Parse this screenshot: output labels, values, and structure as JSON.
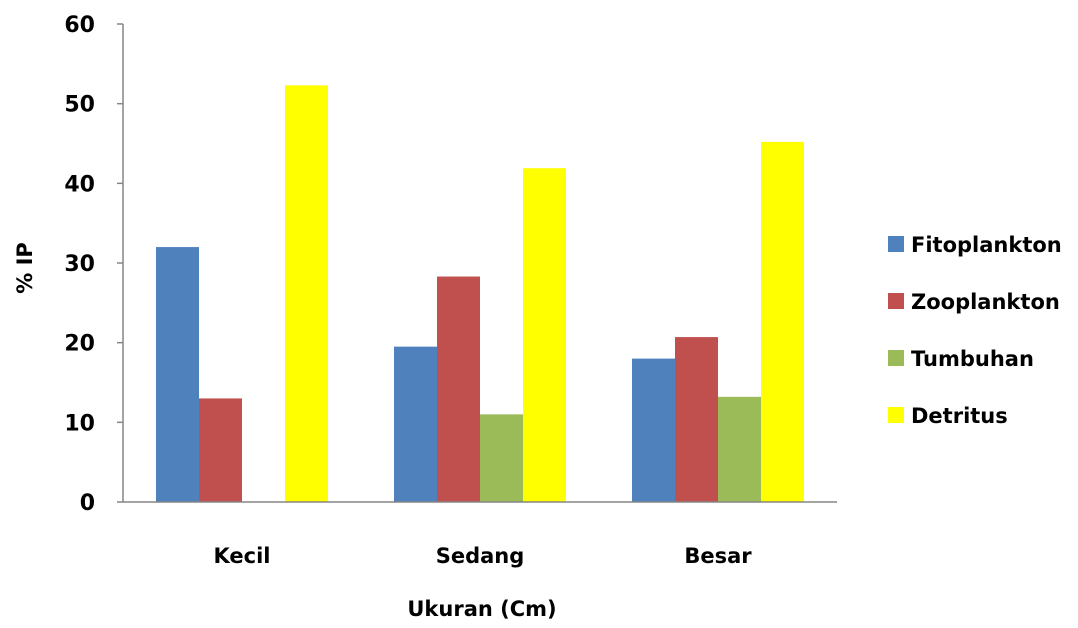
{
  "chart_data": {
    "type": "bar",
    "categories": [
      "Kecil",
      "Sedang",
      "Besar"
    ],
    "series": [
      {
        "name": "Fitoplankton",
        "color": "#4F81BD",
        "values": [
          32,
          19.5,
          18
        ]
      },
      {
        "name": "Zooplankton",
        "color": "#C0504D",
        "values": [
          13,
          28.3,
          20.7
        ]
      },
      {
        "name": "Tumbuhan",
        "color": "#9BBB59",
        "values": [
          0,
          11,
          13.2
        ]
      },
      {
        "name": "Detritus",
        "color": "#FFFF00",
        "values": [
          52.3,
          41.9,
          45.2
        ]
      }
    ],
    "ylim": [
      0,
      60
    ],
    "yticks": [
      "0",
      "10",
      "20",
      "30",
      "40",
      "50",
      "60"
    ],
    "xlabel": "Ukuran (Cm)",
    "ylabel": "% IP",
    "title": "",
    "grid": false,
    "legend_position": "right"
  }
}
